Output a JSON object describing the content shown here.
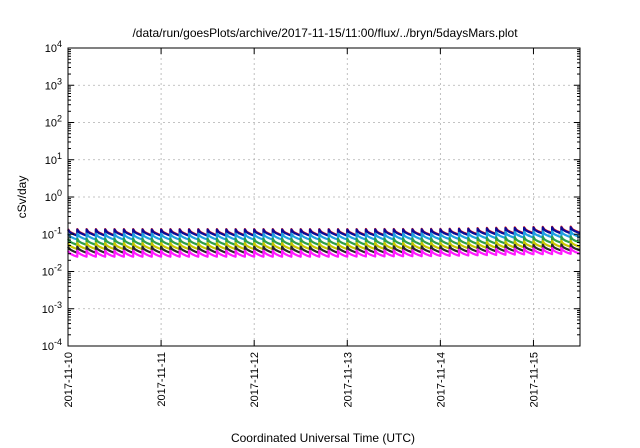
{
  "chart_data": {
    "type": "line",
    "title": "/data/run/goesPlots/archive/2017-11-15/11:00/flux/../bryn/5daysMars.plot",
    "xlabel": "Coordinated Universal Time (UTC)",
    "ylabel": "cSv/day",
    "x_tick_labels": [
      "2017-11-10",
      "2017-11-11",
      "2017-11-12",
      "2017-11-13",
      "2017-11-14",
      "2017-11-15"
    ],
    "xlim": [
      0,
      5.5
    ],
    "y_scale": "log",
    "ylim": [
      0.0001,
      10000
    ],
    "y_ticks": [
      {
        "base": "10",
        "exp": "-4"
      },
      {
        "base": "10",
        "exp": "-3"
      },
      {
        "base": "10",
        "exp": "-2"
      },
      {
        "base": "10",
        "exp": "-1"
      },
      {
        "base": "10",
        "exp": "0"
      },
      {
        "base": "10",
        "exp": "1"
      },
      {
        "base": "10",
        "exp": "2"
      },
      {
        "base": "10",
        "exp": "3"
      },
      {
        "base": "10",
        "exp": "4"
      }
    ],
    "grid": true,
    "sawtooth": {
      "periods_per_day": 10,
      "peak_ratio": 1.45
    },
    "series": [
      {
        "color": "#e41a1c",
        "values": [
          0.095,
          0.095,
          0.095,
          0.095,
          0.096,
          0.108,
          0.115
        ]
      },
      {
        "color": "#0a0a96",
        "values": [
          0.092,
          0.092,
          0.092,
          0.092,
          0.093,
          0.104,
          0.111
        ]
      },
      {
        "color": "#1f9fe0",
        "values": [
          0.072,
          0.072,
          0.072,
          0.072,
          0.073,
          0.082,
          0.087
        ]
      },
      {
        "color": "#2e9e4a",
        "values": [
          0.052,
          0.052,
          0.052,
          0.052,
          0.053,
          0.058,
          0.062
        ]
      },
      {
        "color": "#c8c800",
        "values": [
          0.04,
          0.04,
          0.04,
          0.04,
          0.041,
          0.045,
          0.047
        ]
      },
      {
        "color": "#2a2a2a",
        "values": [
          0.032,
          0.032,
          0.032,
          0.032,
          0.033,
          0.036,
          0.038
        ]
      },
      {
        "color": "#ff1aff",
        "values": [
          0.025,
          0.025,
          0.025,
          0.025,
          0.026,
          0.029,
          0.031
        ]
      }
    ]
  }
}
